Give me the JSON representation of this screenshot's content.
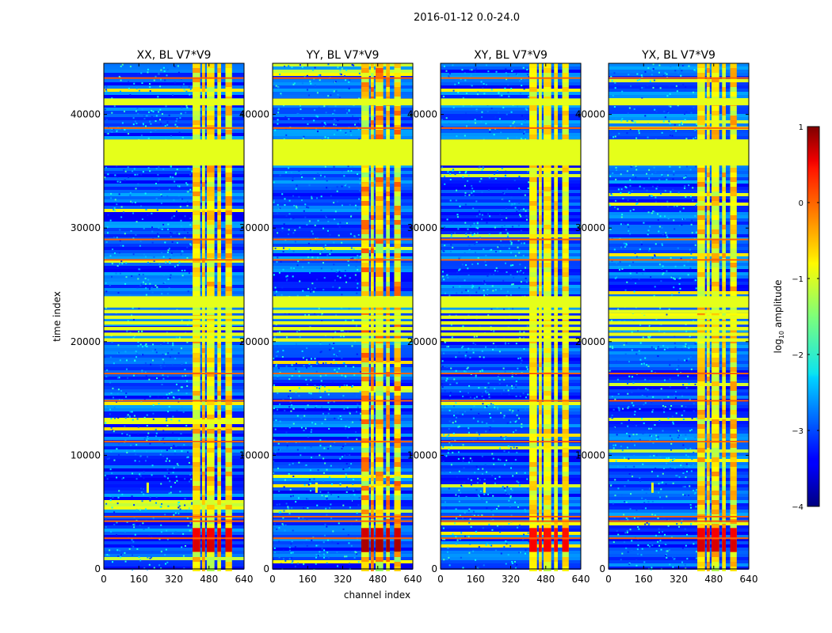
{
  "chart_data": {
    "type": "heatmap",
    "suptitle": "2016-01-12 0.0-24.0",
    "xlabel": "channel index",
    "ylabel": "time index",
    "xlim": [
      0,
      640
    ],
    "ylim": [
      0,
      44500
    ],
    "xticks": [
      0,
      160,
      320,
      480,
      640
    ],
    "yticks": [
      0,
      10000,
      20000,
      30000,
      40000
    ],
    "xtick_labels": [
      "0",
      "160",
      "320",
      "480",
      "640"
    ],
    "ytick_labels": [
      "0",
      "10000",
      "20000",
      "30000",
      "40000"
    ],
    "panels": [
      {
        "title": "XX, BL V7*V9",
        "strength": 0.7
      },
      {
        "title": "YY, BL V7*V9",
        "strength": 1.0
      },
      {
        "title": "XY, BL V7*V9",
        "strength": 0.5
      },
      {
        "title": "YX, BL V7*V9",
        "strength": 0.7
      }
    ],
    "flagged_channel_ranges": [
      [
        0,
        400
      ],
      [
        400,
        640
      ]
    ],
    "flagged_time_ranges": [
      [
        35500,
        37800
      ],
      [
        23000,
        24000
      ],
      [
        40800,
        41400
      ]
    ],
    "rfi_channels": [
      [
        405,
        440
      ],
      [
        448,
        462
      ],
      [
        470,
        505
      ],
      [
        518,
        535
      ],
      [
        555,
        585
      ]
    ],
    "colorbar": {
      "label": "log10 amplitude",
      "label_main": "log",
      "label_sub": "10",
      "label_tail": " amplitude",
      "range": [
        -4,
        1
      ],
      "ticks": [
        1,
        0,
        -1,
        -2,
        -3,
        -4
      ],
      "tick_labels": [
        "1",
        "0",
        "−1",
        "−2",
        "−3",
        "−4"
      ],
      "colormap": "jet"
    }
  }
}
